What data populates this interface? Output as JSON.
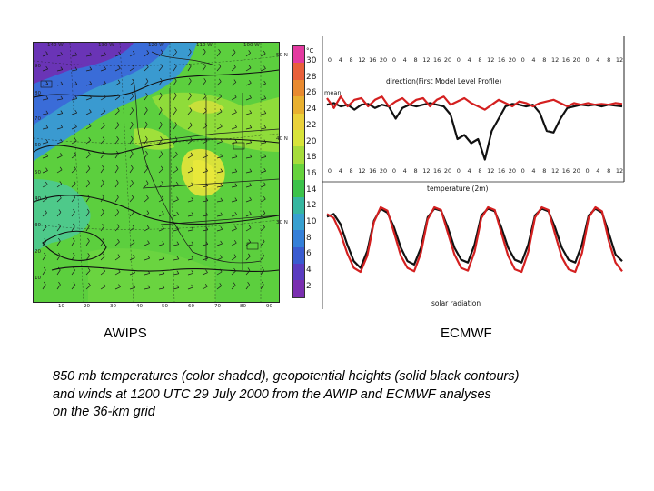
{
  "map": {
    "top_labels": [
      "140 W",
      "130 W",
      "120 W",
      "110 W",
      "100 W"
    ],
    "left_labels": [
      "90",
      "80",
      "70",
      "60",
      "50",
      "40",
      "30",
      "20",
      "10"
    ],
    "bottom_labels": [
      "10",
      "20",
      "30",
      "40",
      "50",
      "60",
      "70",
      "80",
      "90"
    ],
    "lat_labels": [
      "50 N",
      "40 N",
      "30 N"
    ],
    "colors": {
      "purple": "#7a2fb0",
      "blue": "#2c6bd6",
      "cyan": "#3ab6d0",
      "green": "#5ccf3e",
      "lime": "#9fe03a",
      "yellow": "#e6e33a"
    }
  },
  "colorbar": {
    "unit": "°C",
    "ticks": [
      "30",
      "28",
      "26",
      "24",
      "22",
      "20",
      "18",
      "16",
      "14",
      "12",
      "10",
      "8",
      "6",
      "4",
      "2"
    ],
    "colors": [
      "#e33aa0",
      "#e8603a",
      "#e88a30",
      "#e8b030",
      "#ead13a",
      "#d8e43a",
      "#a6dc3a",
      "#66d23c",
      "#3cc24a",
      "#36b6a0",
      "#38a0d0",
      "#3580d8",
      "#3a5cd0",
      "#5a3cc0",
      "#7a2fb0"
    ]
  },
  "chart_data": [
    {
      "type": "line",
      "title": "direction(First Model Level Profile)",
      "xlabel": "temperature (2m)",
      "tick_labels": [
        "0",
        "4",
        "8",
        "12",
        "16",
        "20",
        "0",
        "4",
        "8",
        "12",
        "16",
        "20",
        "0",
        "4",
        "8",
        "12",
        "16",
        "20",
        "0",
        "4",
        "8",
        "12",
        "16",
        "20",
        "0",
        "4",
        "8",
        "12"
      ],
      "legend": "mean",
      "series": [
        {
          "name": "AWIPS",
          "color": "#111111",
          "values": [
            0.72,
            0.74,
            0.7,
            0.72,
            0.66,
            0.72,
            0.73,
            0.68,
            0.72,
            0.7,
            0.55,
            0.68,
            0.72,
            0.7,
            0.72,
            0.74,
            0.72,
            0.7,
            0.6,
            0.3,
            0.35,
            0.25,
            0.3,
            0.05,
            0.4,
            0.55,
            0.7,
            0.73,
            0.72,
            0.7,
            0.72,
            0.62,
            0.4,
            0.38,
            0.55,
            0.68,
            0.7,
            0.72,
            0.71,
            0.72,
            0.7,
            0.72,
            0.71,
            0.7
          ]
        },
        {
          "name": "ECMWF",
          "color": "#d42020",
          "values": [
            0.8,
            0.68,
            0.82,
            0.7,
            0.78,
            0.8,
            0.7,
            0.78,
            0.82,
            0.7,
            0.76,
            0.8,
            0.72,
            0.78,
            0.8,
            0.7,
            0.78,
            0.82,
            0.72,
            0.76,
            0.8,
            0.74,
            0.7,
            0.66,
            0.72,
            0.78,
            0.74,
            0.7,
            0.76,
            0.74,
            0.7,
            0.74,
            0.76,
            0.78,
            0.74,
            0.7,
            0.74,
            0.72,
            0.74,
            0.72,
            0.73,
            0.72,
            0.74,
            0.73
          ]
        }
      ]
    },
    {
      "type": "line",
      "title": "",
      "xlabel": "solar radiation",
      "tick_labels": [
        "0",
        "4",
        "8",
        "12",
        "16",
        "20",
        "0",
        "4",
        "8",
        "12",
        "16",
        "20",
        "0",
        "4",
        "8",
        "12",
        "16",
        "20",
        "0",
        "4",
        "8",
        "12",
        "16",
        "20",
        "0",
        "4",
        "8",
        "12"
      ],
      "series": [
        {
          "name": "AWIPS",
          "color": "#111111",
          "values": [
            0.86,
            0.9,
            0.75,
            0.45,
            0.2,
            0.1,
            0.35,
            0.8,
            0.98,
            0.92,
            0.7,
            0.4,
            0.2,
            0.15,
            0.4,
            0.85,
            0.98,
            0.95,
            0.7,
            0.4,
            0.22,
            0.18,
            0.45,
            0.88,
            0.98,
            0.94,
            0.7,
            0.4,
            0.22,
            0.18,
            0.45,
            0.88,
            0.98,
            0.94,
            0.7,
            0.4,
            0.22,
            0.18,
            0.45,
            0.88,
            0.98,
            0.92,
            0.62,
            0.3,
            0.2
          ]
        },
        {
          "name": "ECMWF",
          "color": "#d42020",
          "values": [
            0.9,
            0.84,
            0.62,
            0.32,
            0.1,
            0.04,
            0.28,
            0.78,
            1.0,
            0.95,
            0.62,
            0.28,
            0.1,
            0.05,
            0.32,
            0.82,
            1.0,
            0.96,
            0.62,
            0.3,
            0.1,
            0.06,
            0.34,
            0.84,
            1.0,
            0.96,
            0.62,
            0.28,
            0.08,
            0.04,
            0.34,
            0.85,
            1.0,
            0.96,
            0.6,
            0.26,
            0.08,
            0.04,
            0.32,
            0.85,
            1.0,
            0.94,
            0.5,
            0.18,
            0.05
          ]
        }
      ]
    }
  ],
  "labels": {
    "left": "AWIPS",
    "right": "ECMWF"
  },
  "caption": [
    "850 mb temperatures (color shaded), geopotential heights (solid black contours)",
    "and winds at 1200 UTC 29 July 2000 from the AWIP  and ECMWF analyses",
    "on the 36-km grid"
  ]
}
